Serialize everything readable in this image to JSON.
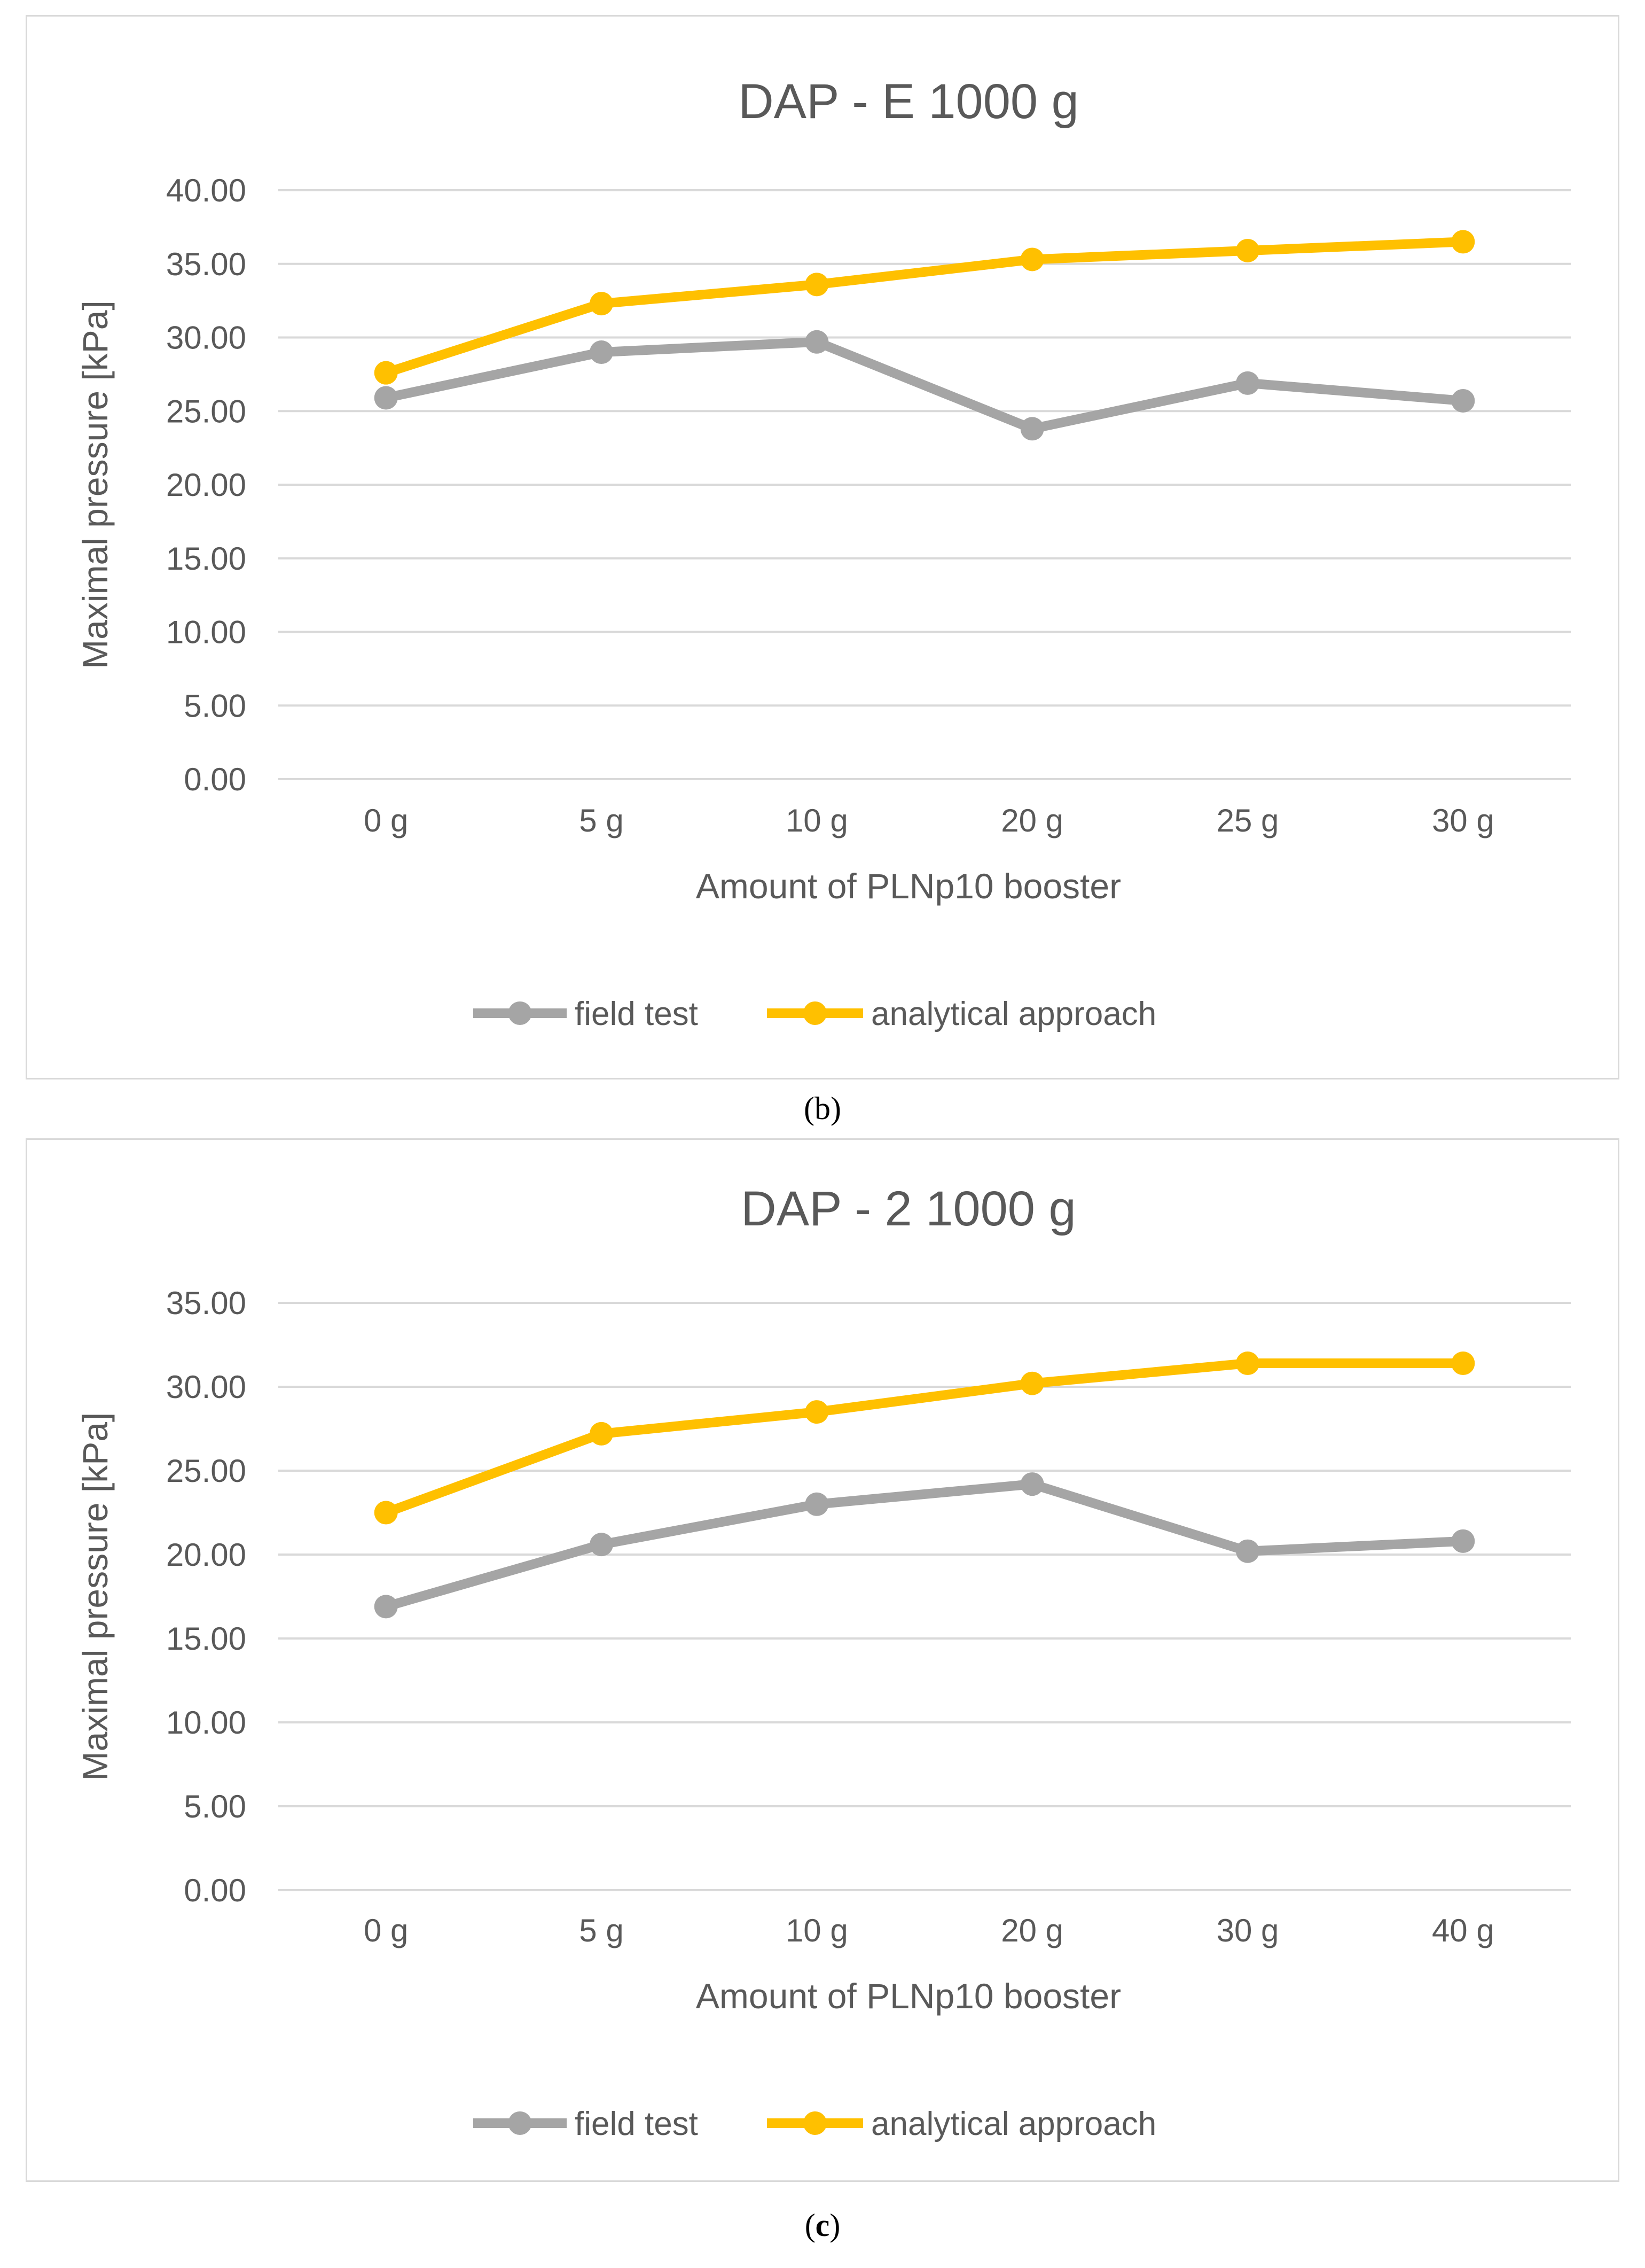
{
  "chart_data": [
    {
      "type": "line",
      "title": "DAP - E   1000 g",
      "xlabel": "Amount of PLNp10 booster",
      "ylabel": "Maximal pressure [kPa]",
      "categories": [
        "0 g",
        "5 g",
        "10 g",
        "20 g",
        "25 g",
        "30 g"
      ],
      "ylim": [
        0,
        40
      ],
      "ytick_step": 5,
      "ytick_labels": [
        "0.00",
        "5.00",
        "10.00",
        "15.00",
        "20.00",
        "25.00",
        "30.00",
        "35.00",
        "40.00"
      ],
      "grid": true,
      "legend_position": "bottom",
      "series": [
        {
          "name": "field test",
          "color": "#a5a5a5",
          "values": [
            25.9,
            29.0,
            29.7,
            23.8,
            26.9,
            25.7
          ]
        },
        {
          "name": "analytical approach",
          "color": "#ffc000",
          "values": [
            27.6,
            32.3,
            33.6,
            35.3,
            35.9,
            36.5
          ]
        }
      ]
    },
    {
      "type": "line",
      "title": "DAP - 2  1000 g",
      "xlabel": "Amount of PLNp10 booster",
      "ylabel": "Maximal pressure [kPa]",
      "categories": [
        "0 g",
        "5 g",
        "10 g",
        "20 g",
        "30 g",
        "40 g"
      ],
      "ylim": [
        0,
        35
      ],
      "ytick_step": 5,
      "ytick_labels": [
        "0.00",
        "5.00",
        "10.00",
        "15.00",
        "20.00",
        "25.00",
        "30.00",
        "35.00"
      ],
      "grid": true,
      "legend_position": "bottom",
      "series": [
        {
          "name": "field test",
          "color": "#a5a5a5",
          "values": [
            16.9,
            20.6,
            23.0,
            24.2,
            20.2,
            20.8
          ]
        },
        {
          "name": "analytical approach",
          "color": "#ffc000",
          "values": [
            22.5,
            27.2,
            28.5,
            30.2,
            31.4,
            31.4
          ]
        }
      ]
    }
  ],
  "captions": {
    "b": {
      "open": "(",
      "letter": "b",
      "close": ")"
    },
    "c": {
      "open": "(",
      "letter": "c",
      "close": ")"
    }
  },
  "colors": {
    "grid": "#d9d9d9",
    "text": "#595959",
    "border": "#d9d9d9"
  }
}
